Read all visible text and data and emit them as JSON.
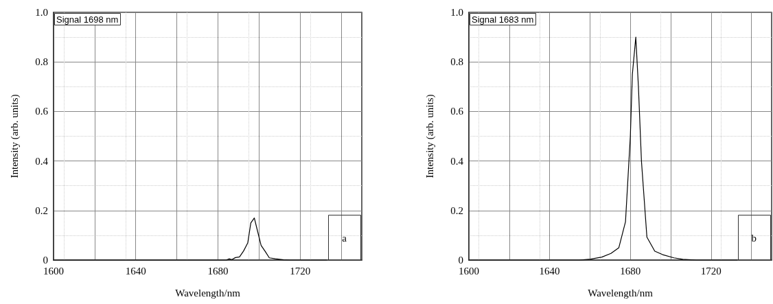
{
  "chart_data": [
    {
      "type": "line",
      "xlabel": "Wavelength/nm",
      "ylabel": "Intensity (arb. units)",
      "annotations": [
        "Signal 1698 nm",
        "a"
      ],
      "xlim": [
        1600,
        1750
      ],
      "xticks": [
        1600,
        {
          "value": 1620,
          "label": null
        },
        1640,
        {
          "value": 1660,
          "label": null
        },
        1680,
        {
          "value": 1700,
          "label": null
        },
        1720,
        {
          "value": 1740,
          "label": null
        }
      ],
      "ylim": [
        0,
        1
      ],
      "yticks": [
        0,
        0.2,
        0.4,
        0.6,
        0.8,
        {
          "value": 1,
          "label": "1.0"
        }
      ],
      "grid": true,
      "marker": "none",
      "line_style": "solid",
      "series": [
        {
          "color": "#000000",
          "x": [
            1600,
            1684,
            1685.4,
            1686.8,
            1688.5,
            1690.5,
            1692.5,
            1694.5,
            1696,
            1697.7,
            1699,
            1701,
            1703,
            1705,
            1708,
            1712,
            1715,
            1733
          ],
          "values": [
            0,
            0,
            0.005,
            0.002,
            0.01,
            0.013,
            0.037,
            0.069,
            0.15,
            0.17,
            0.126,
            0.059,
            0.035,
            0.009,
            0.005,
            0.001,
            0,
            0
          ]
        }
      ]
    },
    {
      "type": "line",
      "xlabel": "Wavelength/nm",
      "ylabel": "Intensity (arb. units)",
      "annotations": [
        "Signal 1683 nm",
        "b"
      ],
      "xlim": [
        1600,
        1750
      ],
      "xticks": [
        1600,
        {
          "value": 1620,
          "label": null
        },
        1640,
        {
          "value": 1660,
          "label": null
        },
        1680,
        {
          "value": 1700,
          "label": null
        },
        1720,
        {
          "value": 1740,
          "label": null
        }
      ],
      "ylim": [
        0,
        1
      ],
      "yticks": [
        0,
        0.2,
        0.4,
        0.6,
        0.8,
        {
          "value": 1,
          "label": "1.0"
        }
      ],
      "grid": true,
      "marker": "none",
      "line_style": "solid",
      "series": [
        {
          "color": "#000000",
          "x": [
            1600,
            1654.7,
            1660.3,
            1665.9,
            1670.4,
            1674.3,
            1677.6,
            1680,
            1681,
            1682.7,
            1684,
            1685.5,
            1688.2,
            1692.1,
            1696,
            1701.6,
            1706,
            1712.7,
            1733
          ],
          "values": [
            0,
            0,
            0.004,
            0.012,
            0.027,
            0.05,
            0.155,
            0.5,
            0.75,
            0.9,
            0.7,
            0.4,
            0.093,
            0.036,
            0.022,
            0.009,
            0.003,
            0,
            0
          ]
        }
      ]
    }
  ]
}
